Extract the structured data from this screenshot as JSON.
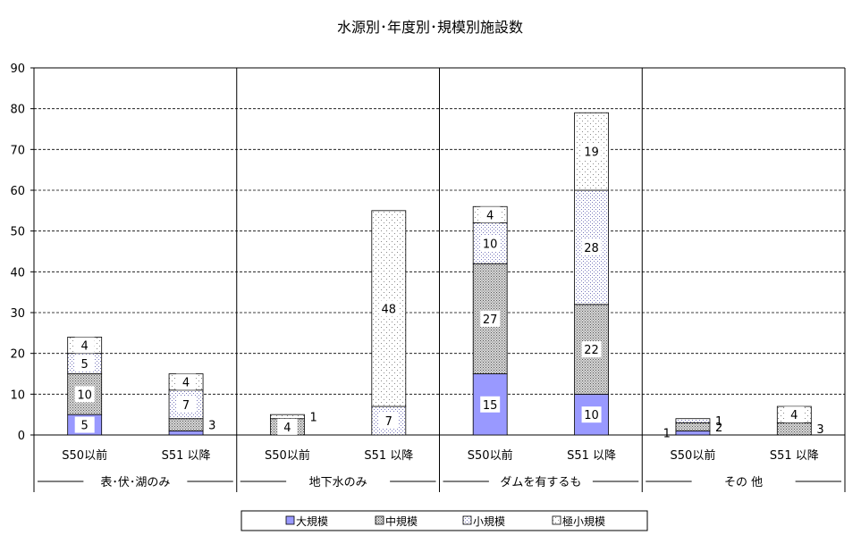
{
  "chart_data": {
    "type": "bar",
    "stacked": true,
    "title": "水源別･年度別･規模別施設数",
    "ylim": [
      0,
      90
    ],
    "y_ticks": [
      0,
      10,
      20,
      30,
      40,
      50,
      60,
      70,
      80,
      90
    ],
    "grid": true,
    "legend_position": "bottom",
    "groups": [
      "表･伏･湖のみ",
      "地下水のみ",
      "ダムを有するも",
      "その 他"
    ],
    "categories": [
      "S50以前",
      "S51 以降",
      "S50以前",
      "S51 以降",
      "S50以前",
      "S51 以降",
      "S50以前",
      "S51 以降"
    ],
    "series": [
      {
        "name": "大規模",
        "color": "#9999ff",
        "values": [
          5,
          1,
          0,
          0,
          15,
          10,
          1,
          0
        ]
      },
      {
        "name": "中規模",
        "color": "#c0c0c0",
        "values": [
          10,
          3,
          4,
          0,
          27,
          22,
          2,
          3
        ]
      },
      {
        "name": "小規模",
        "color": "#e8e8ff",
        "values": [
          5,
          7,
          0,
          7,
          10,
          28,
          1,
          0
        ]
      },
      {
        "name": "極小規模",
        "color": "#f4f4f4",
        "values": [
          4,
          4,
          1,
          48,
          4,
          19,
          0,
          4
        ]
      }
    ],
    "data_labels": [
      [
        "5",
        "",
        "",
        "",
        "15",
        "10",
        "1",
        ""
      ],
      [
        "10",
        "3",
        "4",
        "",
        "27",
        "22",
        "2",
        "3"
      ],
      [
        "5",
        "7",
        "",
        "7",
        "10",
        "28",
        "1",
        ""
      ],
      [
        "4",
        "4",
        "1",
        "48",
        "4",
        "19",
        "",
        "4"
      ]
    ]
  }
}
